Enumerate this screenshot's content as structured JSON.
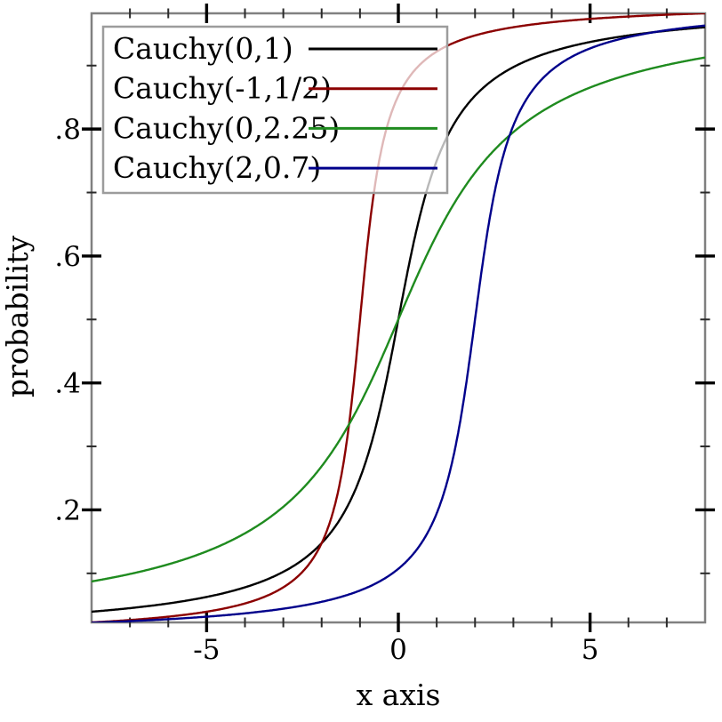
{
  "figure": {
    "description": "Cumulative distribution functions of four Cauchy distributions"
  },
  "chart_data": {
    "type": "line",
    "title": "",
    "xlabel": "x axis",
    "ylabel": "probability",
    "xlim": [
      -8,
      8
    ],
    "ylim": [
      0.0227,
      0.9823
    ],
    "grid": false,
    "legend_position": "top-left",
    "curve_type": "cauchy_cdf",
    "formula": "F(x) = 0.5 + arctan((x - location)/scale)/pi",
    "x_axis": {
      "major_ticks": [
        -5,
        0,
        5
      ],
      "major_tick_labels": [
        "-5",
        "0",
        "5"
      ],
      "minor_ticks": [
        -7,
        -6,
        -4,
        -3,
        -2,
        -1,
        1,
        2,
        3,
        4,
        6,
        7
      ]
    },
    "y_axis": {
      "major_ticks": [
        0.2,
        0.4,
        0.6,
        0.8
      ],
      "major_tick_labels": [
        ".2",
        ".4",
        ".6",
        ".8"
      ],
      "minor_ticks": [
        0.1,
        0.3,
        0.5,
        0.7,
        0.9
      ]
    },
    "x_samples": [
      -8,
      -7,
      -6,
      -5,
      -4,
      -3,
      -2,
      -1,
      0,
      1,
      2,
      3,
      4,
      5,
      6,
      7,
      8
    ],
    "series": [
      {
        "name": "Cauchy(0,1)",
        "color": "#000000",
        "location": 0,
        "scale": 1,
        "values": [
          0.04,
          0.045,
          0.053,
          0.063,
          0.078,
          0.102,
          0.148,
          0.25,
          0.5,
          0.75,
          0.852,
          0.898,
          0.922,
          0.937,
          0.947,
          0.955,
          0.96
        ]
      },
      {
        "name": "Cauchy(-1,1/2)",
        "color": "#8b0000",
        "location": -1,
        "scale": 0.5,
        "values": [
          0.023,
          0.026,
          0.032,
          0.04,
          0.053,
          0.078,
          0.148,
          0.5,
          0.852,
          0.922,
          0.947,
          0.96,
          0.968,
          0.974,
          0.977,
          0.98,
          0.982
        ]
      },
      {
        "name": "Cauchy(0,2.25)",
        "color": "#1f8b1f",
        "location": 0,
        "scale": 2.25,
        "values": [
          0.087,
          0.099,
          0.114,
          0.135,
          0.163,
          0.205,
          0.269,
          0.367,
          0.5,
          0.633,
          0.731,
          0.795,
          0.837,
          0.865,
          0.886,
          0.901,
          0.913
        ]
      },
      {
        "name": "Cauchy(2,0.7)",
        "color": "#00008b",
        "location": 2,
        "scale": 0.7,
        "values": [
          0.022,
          0.025,
          0.028,
          0.032,
          0.037,
          0.044,
          0.055,
          0.073,
          0.107,
          0.194,
          0.5,
          0.806,
          0.893,
          0.927,
          0.945,
          0.955,
          0.963
        ]
      }
    ]
  },
  "legend": {
    "border_color": "#9c9c9c",
    "background": "rgba(255,255,255,0.72)"
  },
  "style": {
    "frame_color": "#808080",
    "major_tick_color": "#000000",
    "minor_tick_color": "#2a2a2a",
    "text_color": "#000000",
    "background": "#ffffff"
  }
}
